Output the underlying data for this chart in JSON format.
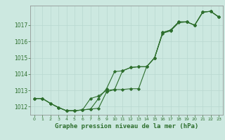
{
  "title": "Graphe pression niveau de la mer (hPa)",
  "background_color": "#cce8e0",
  "line_color": "#2d6e2d",
  "ylim": [
    1011.5,
    1018.2
  ],
  "yticks": [
    1012,
    1013,
    1014,
    1015,
    1016,
    1017
  ],
  "hours": [
    0,
    1,
    2,
    3,
    4,
    5,
    6,
    7,
    8,
    9,
    10,
    11,
    12,
    13,
    14,
    15,
    16,
    17,
    18,
    19,
    20,
    21,
    22,
    23
  ],
  "line1": [
    1012.5,
    1012.5,
    1012.2,
    1011.95,
    1011.75,
    1011.75,
    1011.8,
    1011.85,
    1011.9,
    1012.9,
    1013.05,
    1013.05,
    1013.1,
    1013.1,
    1014.45,
    1015.0,
    1016.5,
    1016.65,
    1017.15,
    1017.2,
    1017.0,
    1017.8,
    1017.85,
    1017.5
  ],
  "line2": [
    1012.5,
    1012.5,
    1012.2,
    1011.95,
    1011.75,
    1011.75,
    1011.8,
    1012.5,
    1012.65,
    1013.0,
    1013.05,
    1014.2,
    1014.4,
    1014.45,
    1014.45,
    1015.0,
    1016.55,
    1016.7,
    1017.2,
    1017.2,
    1017.0,
    1017.8,
    1017.85,
    1017.5
  ],
  "line3": [
    1012.5,
    1012.5,
    1012.2,
    1011.95,
    1011.75,
    1011.75,
    1011.8,
    1011.85,
    1012.5,
    1013.1,
    1014.15,
    1014.2,
    1014.4,
    1014.45,
    1014.45,
    1015.0,
    1016.55,
    1016.7,
    1017.2,
    1017.2,
    1017.0,
    1017.8,
    1017.85,
    1017.5
  ],
  "x_labels": [
    "0",
    "1",
    "2",
    "3",
    "4",
    "5",
    "6",
    "7",
    "8",
    "9",
    "10",
    "11",
    "12",
    "13",
    "14",
    "15",
    "16",
    "17",
    "18",
    "19",
    "20",
    "21",
    "22",
    "23"
  ]
}
